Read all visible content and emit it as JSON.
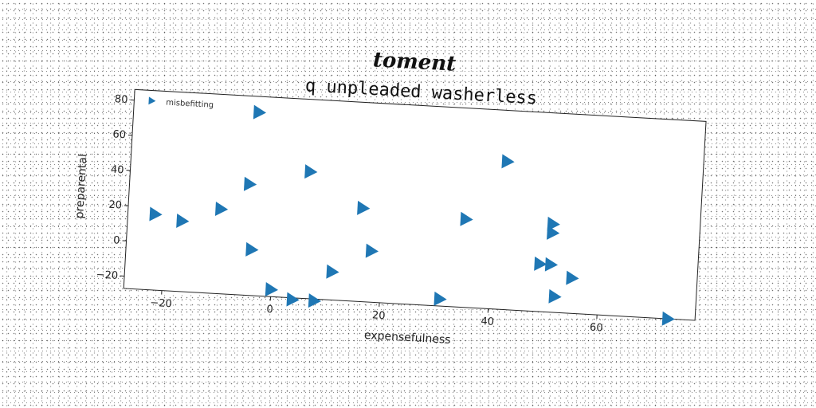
{
  "suptitle": "toment",
  "chart_data": {
    "type": "scatter",
    "title": "q unpleaded washerless",
    "xlabel": "expensefulness",
    "ylabel": "preparental",
    "xlim": [
      -27,
      78
    ],
    "ylim": [
      -27,
      86
    ],
    "xticks": [
      -20,
      0,
      20,
      40,
      60
    ],
    "yticks": [
      -20,
      0,
      20,
      40,
      60,
      80
    ],
    "legend_position": "top-left",
    "grid": false,
    "marker": "triangle-right",
    "color": "#1f77b4",
    "series": [
      {
        "name": "misbefitting",
        "points": [
          {
            "x": -22,
            "y": 16
          },
          {
            "x": -17,
            "y": 13
          },
          {
            "x": -10,
            "y": 21
          },
          {
            "x": -5,
            "y": 36
          },
          {
            "x": -4,
            "y": 77
          },
          {
            "x": -4,
            "y": -1
          },
          {
            "x": 6,
            "y": 45
          },
          {
            "x": 0,
            "y": -23
          },
          {
            "x": 4,
            "y": -28
          },
          {
            "x": 8,
            "y": -28
          },
          {
            "x": 11,
            "y": -11
          },
          {
            "x": 16,
            "y": 26
          },
          {
            "x": 18,
            "y": 2
          },
          {
            "x": 31,
            "y": -23
          },
          {
            "x": 35,
            "y": 23
          },
          {
            "x": 42,
            "y": 57
          },
          {
            "x": 49,
            "y": 0
          },
          {
            "x": 51,
            "y": 0
          },
          {
            "x": 51,
            "y": 23
          },
          {
            "x": 51,
            "y": 18
          },
          {
            "x": 52,
            "y": -18
          },
          {
            "x": 55,
            "y": -7
          },
          {
            "x": 73,
            "y": -27
          }
        ]
      }
    ]
  }
}
